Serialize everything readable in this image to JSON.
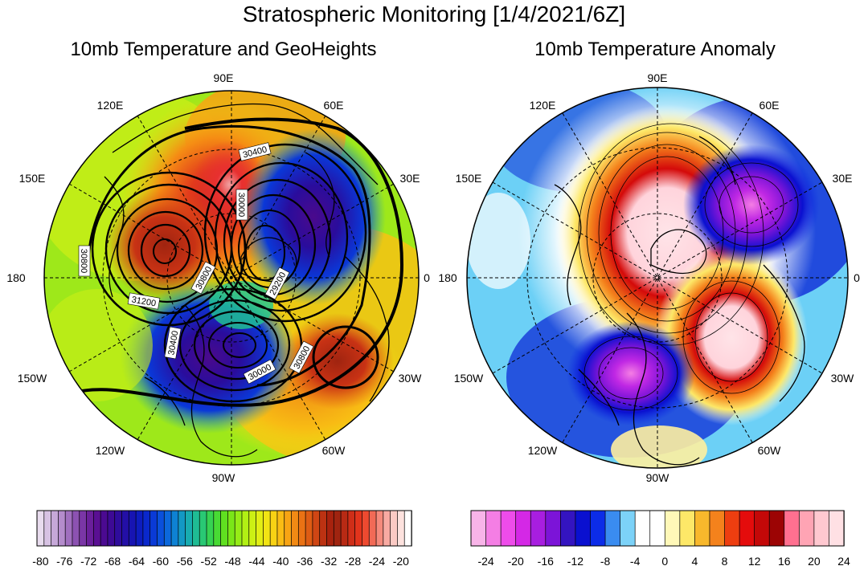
{
  "title": "Stratospheric Monitoring [1/4/2021/6Z]",
  "panels": [
    {
      "id": "left",
      "title": "10mb Temperature and GeoHeights",
      "lon_labels": [
        "90E",
        "60E",
        "30E",
        "0",
        "30W",
        "60W",
        "90W",
        "120W",
        "150W",
        "180",
        "150E",
        "120E"
      ],
      "contour_labels": [
        "30400",
        "30000",
        "30800",
        "29200",
        "30800",
        "31200",
        "30400",
        "30000",
        "30800"
      ],
      "colorbar": {
        "ticks": [
          "-80",
          "-76",
          "-72",
          "-68",
          "-64",
          "-60",
          "-56",
          "-52",
          "-48",
          "-44",
          "-40",
          "-36",
          "-32",
          "-28",
          "-24",
          "-20"
        ],
        "colors": [
          "#e8dcee",
          "#d7c2e3",
          "#c6a8d8",
          "#b48ccc",
          "#a06fbf",
          "#8c52b2",
          "#7a36a6",
          "#6a1f9b",
          "#5a0f93",
          "#4b0a91",
          "#3d0a95",
          "#2f0c9c",
          "#230fa6",
          "#1714b2",
          "#0d1cbf",
          "#0a28cc",
          "#0a3ad6",
          "#0a50dc",
          "#0c68dc",
          "#0e82d4",
          "#1398c4",
          "#18acb0",
          "#1fbc94",
          "#29c874",
          "#36d252",
          "#48da34",
          "#60e020",
          "#7ae618",
          "#96ec16",
          "#b2f014",
          "#ccf014",
          "#e2ee14",
          "#f2e414",
          "#f8d214",
          "#f9bc14",
          "#f7a414",
          "#f28a14",
          "#ea7214",
          "#de5c14",
          "#cf4614",
          "#bc3212",
          "#a8220e",
          "#a02410",
          "#b82a14",
          "#cf2e18",
          "#e2341c",
          "#ee4a30",
          "#f26a56",
          "#f58a7c",
          "#f8aaa2",
          "#fbcac4",
          "#fde2de",
          "#ffffff"
        ]
      }
    },
    {
      "id": "right",
      "title": "10mb Temperature Anomaly",
      "lon_labels": [
        "90E",
        "60E",
        "30E",
        "0",
        "30W",
        "60W",
        "90W",
        "120W",
        "150W",
        "180",
        "150E",
        "120E"
      ],
      "colorbar": {
        "ticks": [
          "-24",
          "-20",
          "-16",
          "-12",
          "-8",
          "-4",
          "0",
          "4",
          "8",
          "12",
          "16",
          "20",
          "24"
        ],
        "colors": [
          "#f8b4e8",
          "#f47ee4",
          "#ee4cea",
          "#d428e6",
          "#a81ee0",
          "#7c14d8",
          "#3414c0",
          "#0a10d0",
          "#0c2ce8",
          "#3a8cf0",
          "#7cd2f8",
          "#ffffff",
          "#ffffff",
          "#fff8b8",
          "#fde868",
          "#f8b82c",
          "#f4821c",
          "#ee3e10",
          "#e40c0c",
          "#c40808",
          "#9c0404",
          "#ff7090",
          "#ffa4b4",
          "#ffc8d0",
          "#ffe0e4"
        ]
      }
    }
  ],
  "colors": {
    "contour": "#000000",
    "coast": "#000000",
    "frame": "#000000"
  }
}
